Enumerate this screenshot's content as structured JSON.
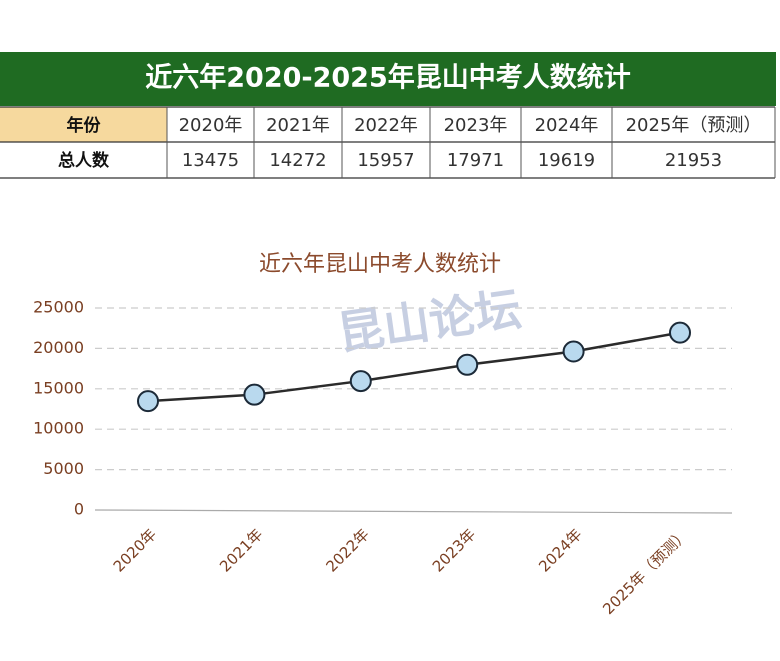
{
  "header": {
    "title": "近六年2020-2025年昆山中考人数统计"
  },
  "table": {
    "header": [
      "年份",
      "2020年",
      "2021年",
      "2022年",
      "2023年",
      "2024年",
      "2025年（预测）"
    ],
    "rows": [
      [
        "总人数",
        13475,
        14272,
        15957,
        17971,
        19619,
        21953
      ]
    ]
  },
  "chart_data": {
    "type": "line",
    "title": "近六年昆山中考人数统计",
    "categories": [
      "2020年",
      "2021年",
      "2022年",
      "2023年",
      "2024年",
      "2025年（预测）"
    ],
    "values": [
      13475,
      14272,
      15957,
      17971,
      19619,
      21953
    ],
    "color": "#2b2b2b",
    "marker_color": "#b9d9ee",
    "ylim": [
      0,
      25000
    ],
    "yticks": [
      0,
      5000,
      10000,
      15000,
      20000,
      25000
    ],
    "grid": true
  },
  "watermark": "昆山论坛"
}
